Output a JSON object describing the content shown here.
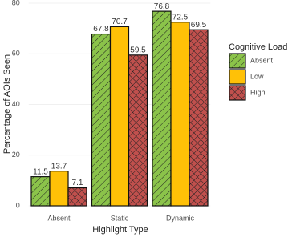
{
  "chart_data": {
    "type": "bar",
    "x_label": "Highlight Type",
    "y_label": "Percentage of AOIs Seen",
    "categories": [
      "Absent",
      "Static",
      "Dynamic"
    ],
    "legend_title": "Cognitive Load",
    "series": [
      {
        "name": "Absent",
        "color": "#8bc34a",
        "hatch": "stripes",
        "values": [
          11.5,
          67.8,
          76.8
        ]
      },
      {
        "name": "Low",
        "color": "#ffc107",
        "hatch": "none",
        "values": [
          13.7,
          70.7,
          72.5
        ]
      },
      {
        "name": "High",
        "color": "#c0504d",
        "hatch": "crosshatch",
        "values": [
          7.1,
          59.5,
          69.5
        ]
      }
    ],
    "ylim": [
      0,
      80
    ],
    "yticks": [
      0,
      20,
      40,
      60,
      80
    ],
    "grid": true,
    "legend": "right"
  }
}
